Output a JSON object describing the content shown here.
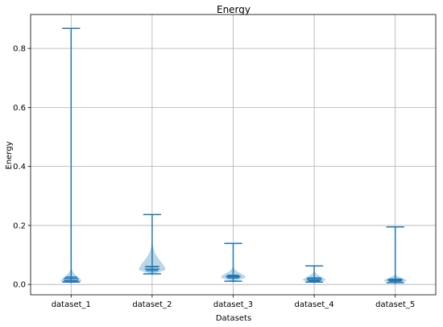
{
  "chart_data": {
    "type": "violin",
    "title": "Energy",
    "xlabel": "Datasets",
    "ylabel": "Energy",
    "categories": [
      "dataset_1",
      "dataset_2",
      "dataset_3",
      "dataset_4",
      "dataset_5"
    ],
    "ylim": [
      -0.035,
      0.915
    ],
    "yticks": [
      0.0,
      0.2,
      0.4,
      0.6,
      0.8
    ],
    "ytick_labels": [
      "0.0",
      "0.2",
      "0.4",
      "0.6",
      "0.8"
    ],
    "grid": true,
    "colors": {
      "line": "#1f77b4",
      "body": "#1f77b4",
      "grid": "#b0b0b0",
      "axis": "#000000"
    },
    "series": [
      {
        "min": 0.008,
        "mean": 0.02,
        "median": 0.013,
        "max": 0.868,
        "q1": 0.012,
        "q3": 0.025,
        "width": 0.5,
        "tail": 0.05
      },
      {
        "min": 0.036,
        "mean": 0.061,
        "median": 0.052,
        "max": 0.237,
        "q1": 0.047,
        "q3": 0.06,
        "width": 0.65,
        "tail": 0.1
      },
      {
        "min": 0.011,
        "mean": 0.027,
        "median": 0.026,
        "max": 0.139,
        "q1": 0.022,
        "q3": 0.031,
        "width": 0.6,
        "tail": 0.04
      },
      {
        "min": 0.008,
        "mean": 0.021,
        "median": 0.016,
        "max": 0.063,
        "q1": 0.012,
        "q3": 0.022,
        "width": 0.55,
        "tail": 0.035
      },
      {
        "min": 0.006,
        "mean": 0.017,
        "median": 0.014,
        "max": 0.195,
        "q1": 0.011,
        "q3": 0.018,
        "width": 0.55,
        "tail": 0.025
      }
    ]
  }
}
